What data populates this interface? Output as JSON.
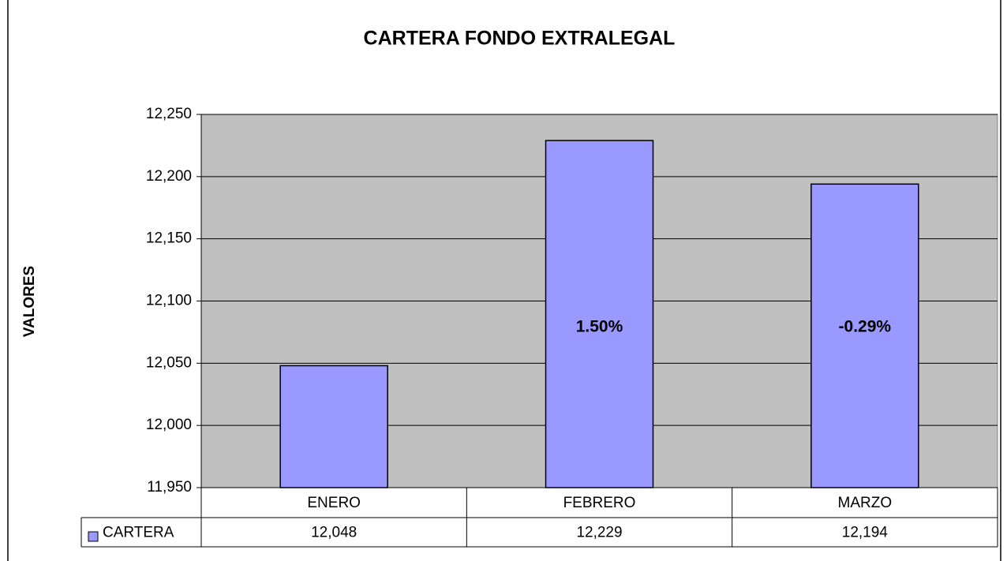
{
  "chart_data": {
    "type": "bar",
    "title": "CARTERA FONDO EXTRALEGAL",
    "y_label": "VALORES",
    "categories": [
      "ENERO",
      "FEBRERO",
      "MARZO"
    ],
    "series": [
      {
        "name": "CARTERA",
        "color": "#9999ff",
        "values": [
          12048,
          12229,
          12194
        ],
        "value_labels": [
          "12,048",
          "12,229",
          "12,194"
        ]
      }
    ],
    "bar_annotations": [
      null,
      "1.50%",
      "-0.29%"
    ],
    "ylim": [
      11950,
      12250
    ],
    "yticks": [
      {
        "value": 11950,
        "label": "11,950"
      },
      {
        "value": 12000,
        "label": "12,000"
      },
      {
        "value": 12050,
        "label": "12,050"
      },
      {
        "value": 12100,
        "label": "12,100"
      },
      {
        "value": 12150,
        "label": "12,150"
      },
      {
        "value": 12200,
        "label": "12,200"
      },
      {
        "value": 12250,
        "label": "12,250"
      }
    ],
    "grid": true,
    "plot_background": "#c0c0c0"
  }
}
